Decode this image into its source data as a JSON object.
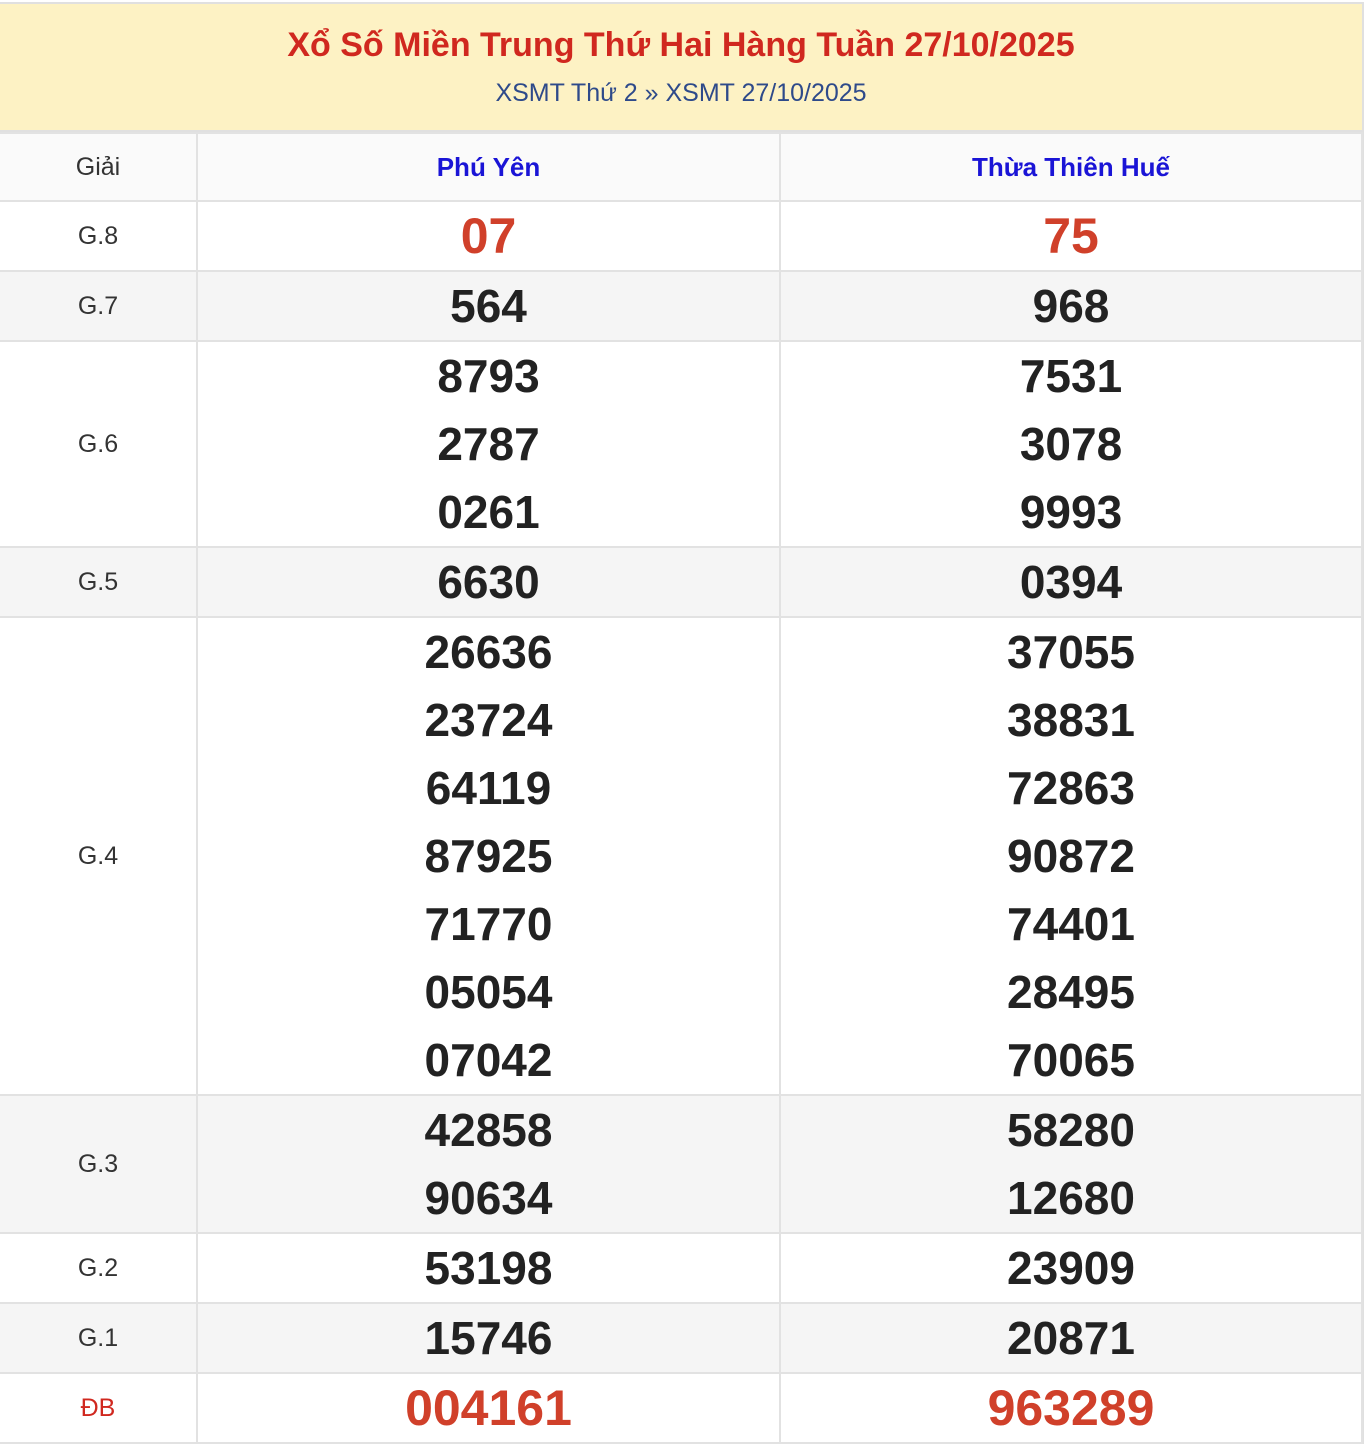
{
  "header": {
    "title": "Xổ Số Miền Trung Thứ Hai Hàng Tuần 27/10/2025",
    "breadcrumb": [
      "XSMT Thứ 2",
      "»",
      "XSMT 27/10/2025"
    ]
  },
  "table": {
    "columns": [
      "Giải",
      "Phú Yên",
      "Thừa Thiên Huế"
    ],
    "rows": [
      {
        "label": "G.8",
        "a": [
          "07"
        ],
        "b": [
          "75"
        ]
      },
      {
        "label": "G.7",
        "a": [
          "564"
        ],
        "b": [
          "968"
        ]
      },
      {
        "label": "G.6",
        "a": [
          "8793",
          "2787",
          "0261"
        ],
        "b": [
          "7531",
          "3078",
          "9993"
        ]
      },
      {
        "label": "G.5",
        "a": [
          "6630"
        ],
        "b": [
          "0394"
        ]
      },
      {
        "label": "G.4",
        "a": [
          "26636",
          "23724",
          "64119",
          "87925",
          "71770",
          "05054",
          "07042"
        ],
        "b": [
          "37055",
          "38831",
          "72863",
          "90872",
          "74401",
          "28495",
          "70065"
        ]
      },
      {
        "label": "G.3",
        "a": [
          "42858",
          "90634"
        ],
        "b": [
          "58280",
          "12680"
        ]
      },
      {
        "label": "G.2",
        "a": [
          "53198"
        ],
        "b": [
          "23909"
        ]
      },
      {
        "label": "G.1",
        "a": [
          "15746"
        ],
        "b": [
          "20871"
        ]
      },
      {
        "label": "ĐB",
        "a": [
          "004161"
        ],
        "b": [
          "963289"
        ]
      }
    ]
  },
  "colors": {
    "title": "#d0281f",
    "province": "#1a14d6",
    "highlight": "#d0402a",
    "header_bg": "#fdf2c4"
  }
}
